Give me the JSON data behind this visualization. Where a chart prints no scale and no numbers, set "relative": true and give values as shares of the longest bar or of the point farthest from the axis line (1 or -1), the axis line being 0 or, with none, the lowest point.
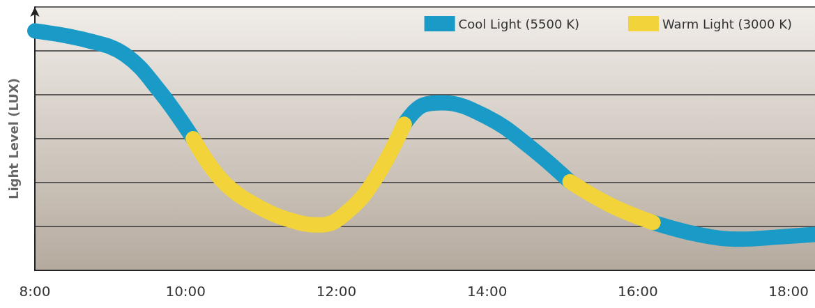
{
  "chart_data": {
    "type": "line",
    "relative": true,
    "ylabel": "Light Level (LUX)",
    "xlim": [
      8,
      18.35
    ],
    "xticks": [
      {
        "value": 8,
        "label": "8:00"
      },
      {
        "value": 10,
        "label": "10:00"
      },
      {
        "value": 12,
        "label": "12:00"
      },
      {
        "value": 14,
        "label": "14:00"
      },
      {
        "value": 16,
        "label": "16:00"
      },
      {
        "value": 18,
        "label": "18:00"
      }
    ],
    "series": [
      {
        "name": "Cool Light (5500 K)",
        "color": "#1a9bc7",
        "x": [
          8.0,
          8.7,
          9.2,
          9.65,
          10.1,
          null,
          12.9,
          13.15,
          13.4,
          14.0,
          14.55,
          15.1,
          null,
          16.2,
          16.8,
          17.35,
          17.9,
          18.35
        ],
        "values": [
          1.0,
          0.96,
          0.9,
          0.75,
          0.55,
          null,
          0.61,
          0.69,
          0.7,
          0.64,
          0.52,
          0.37,
          null,
          0.2,
          0.15,
          0.13,
          0.14,
          0.15
        ]
      },
      {
        "name": "Warm Light (3000 K)",
        "color": "#f2d43a",
        "x": [
          10.1,
          10.5,
          11.0,
          11.5,
          11.8,
          12.2,
          12.55,
          12.9,
          null,
          15.1,
          15.65,
          16.2
        ],
        "values": [
          0.55,
          0.37,
          0.26,
          0.2,
          0.19,
          0.26,
          0.4,
          0.61,
          null,
          0.37,
          0.27,
          0.2
        ]
      }
    ],
    "grid": "y",
    "legend": "top right",
    "marker": "none",
    "line_style": "solid"
  }
}
